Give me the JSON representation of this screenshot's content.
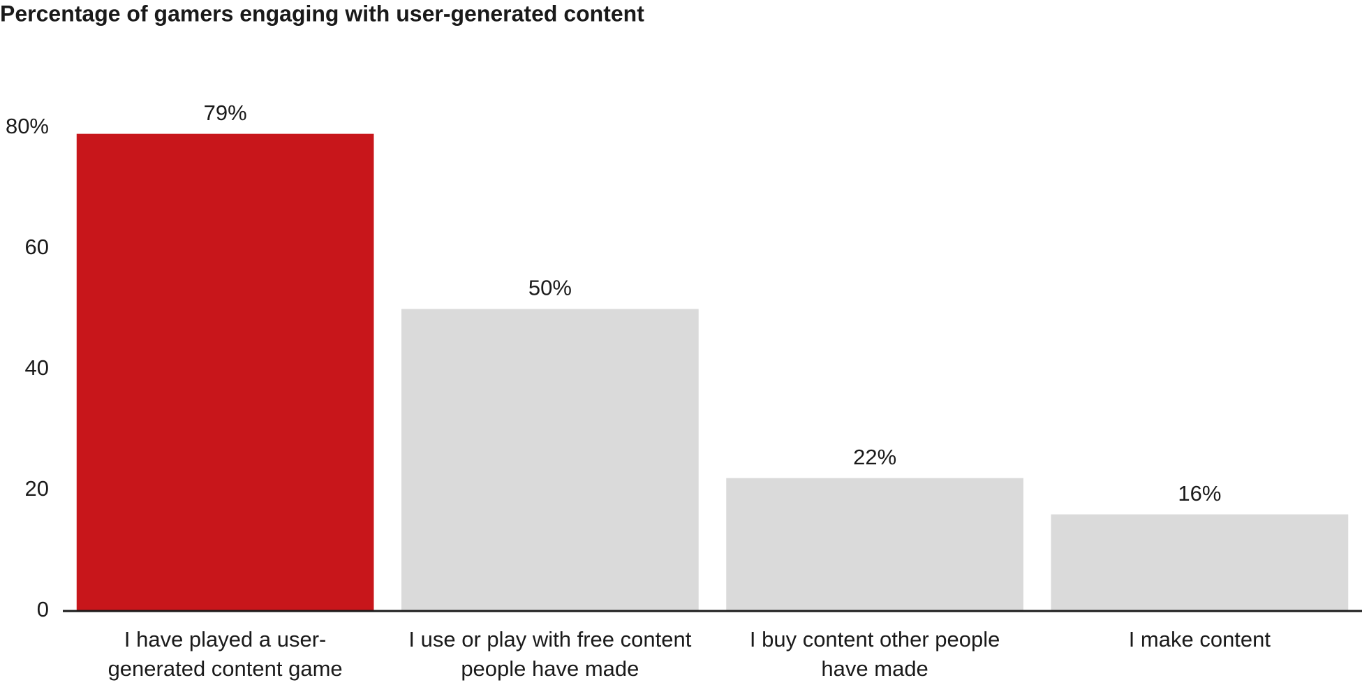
{
  "chart_data": {
    "type": "bar",
    "title": "Percentage of gamers engaging with user-generated content",
    "categories": [
      "I have played a user-generated content game",
      "I use or play with free content people have made",
      "I buy content other people have made",
      "I make content"
    ],
    "values": [
      79,
      50,
      22,
      16
    ],
    "value_labels": [
      "79%",
      "50%",
      "22%",
      "16%"
    ],
    "colors": [
      "#c8161b",
      "#dadada",
      "#dadada",
      "#dadada"
    ],
    "ylim": [
      0,
      80
    ],
    "yticks": [
      0,
      20,
      40,
      60,
      {
        "value": 80,
        "label": "80%"
      }
    ],
    "grid": false
  }
}
